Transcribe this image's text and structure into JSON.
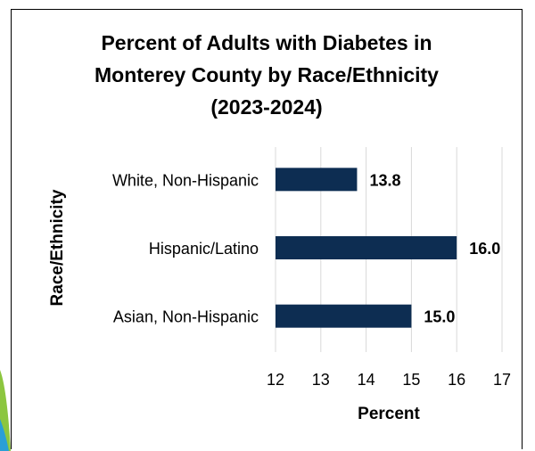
{
  "chart_data": {
    "type": "bar",
    "orientation": "horizontal",
    "title_lines": [
      "Percent of Adults with Diabetes in",
      "Monterey County by Race/Ethnicity",
      "(2023-2024)"
    ],
    "categories": [
      "White, Non-Hispanic",
      "Hispanic/Latino",
      "Asian, Non-Hispanic"
    ],
    "values": [
      13.8,
      16.0,
      15.0
    ],
    "data_labels": [
      "13.8",
      "16.0",
      "15.0"
    ],
    "xlabel": "Percent",
    "ylabel": "Race/Ethnicity",
    "xlim": [
      12,
      17
    ],
    "xticks": [
      "12",
      "13",
      "14",
      "15",
      "16",
      "17"
    ],
    "grid": "vertical",
    "legend": "none",
    "bar_color": "#0d2d52"
  }
}
